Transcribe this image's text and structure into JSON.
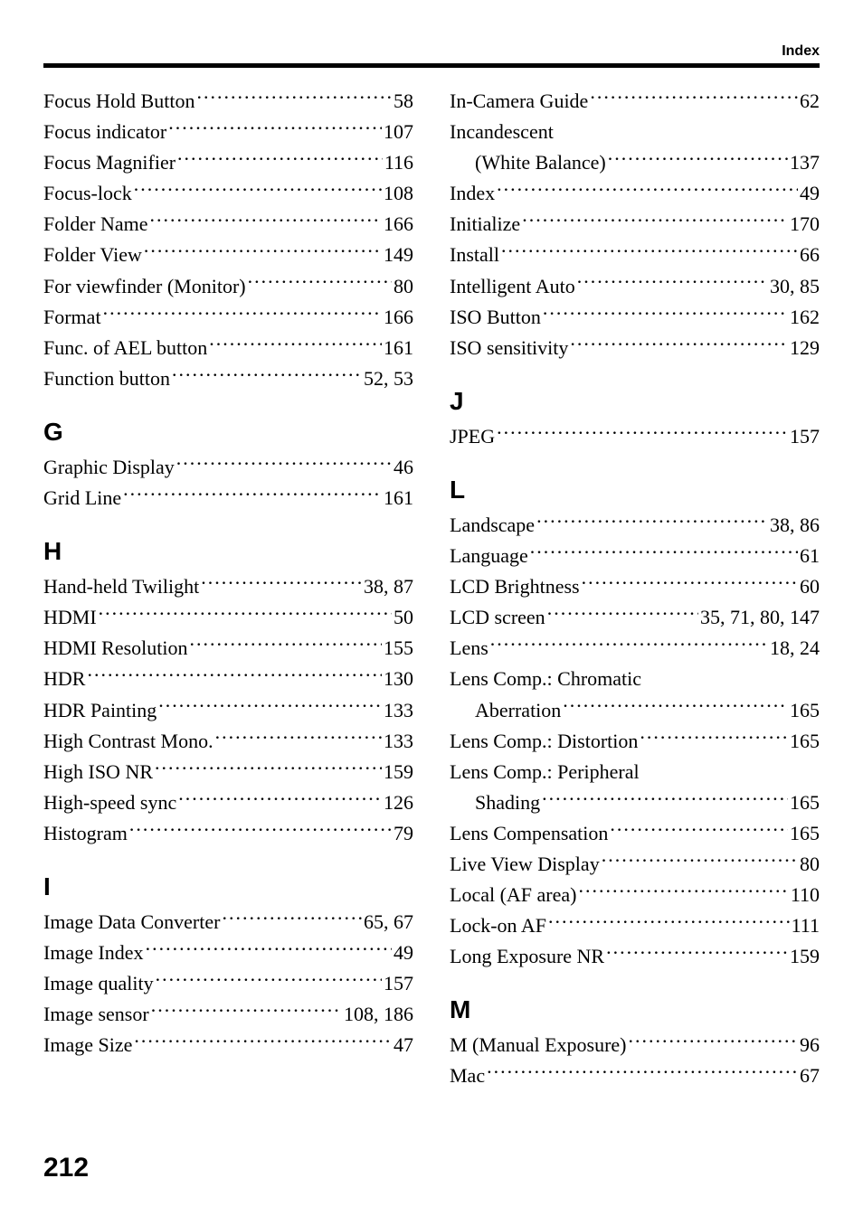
{
  "header": {
    "label": "Index"
  },
  "pageNumber": "212",
  "left": {
    "top": [
      {
        "label": "Focus Hold Button",
        "page": "58"
      },
      {
        "label": "Focus indicator",
        "page": "107"
      },
      {
        "label": "Focus Magnifier",
        "page": "116"
      },
      {
        "label": "Focus-lock",
        "page": "108"
      },
      {
        "label": "Folder Name",
        "page": "166"
      },
      {
        "label": "Folder View",
        "page": "149"
      },
      {
        "label": "For viewfinder (Monitor)",
        "page": "80"
      },
      {
        "label": "Format",
        "page": "166"
      },
      {
        "label": "Func. of AEL button",
        "page": "161"
      },
      {
        "label": "Function button",
        "page": "52, 53"
      }
    ],
    "sections": [
      {
        "letter": "G",
        "entries": [
          {
            "label": "Graphic Display",
            "page": "46"
          },
          {
            "label": "Grid Line",
            "page": "161"
          }
        ]
      },
      {
        "letter": "H",
        "entries": [
          {
            "label": "Hand-held Twilight",
            "page": "38, 87"
          },
          {
            "label": "HDMI",
            "page": "50"
          },
          {
            "label": "HDMI Resolution",
            "page": "155"
          },
          {
            "label": "HDR",
            "page": "130"
          },
          {
            "label": "HDR Painting",
            "page": "133"
          },
          {
            "label": "High Contrast Mono.",
            "page": "133"
          },
          {
            "label": "High ISO NR",
            "page": "159"
          },
          {
            "label": "High-speed sync",
            "page": "126"
          },
          {
            "label": "Histogram",
            "page": "79"
          }
        ]
      },
      {
        "letter": "I",
        "entries": [
          {
            "label": "Image Data Converter",
            "page": "65, 67"
          },
          {
            "label": "Image Index",
            "page": "49"
          },
          {
            "label": "Image quality",
            "page": "157"
          },
          {
            "label": "Image sensor",
            "page": "108, 186"
          },
          {
            "label": "Image Size",
            "page": "47"
          }
        ]
      }
    ]
  },
  "right": {
    "top": [
      {
        "label": "In-Camera Guide",
        "page": "62"
      },
      {
        "label": "Incandescent",
        "page": "",
        "nodots": true
      },
      {
        "label": "(White Balance)",
        "page": "137",
        "continuation": true
      },
      {
        "label": "Index",
        "page": "49"
      },
      {
        "label": "Initialize",
        "page": "170"
      },
      {
        "label": "Install",
        "page": "66"
      },
      {
        "label": "Intelligent Auto",
        "page": "30, 85"
      },
      {
        "label": "ISO Button",
        "page": "162"
      },
      {
        "label": "ISO sensitivity",
        "page": "129"
      }
    ],
    "sections": [
      {
        "letter": "J",
        "entries": [
          {
            "label": "JPEG",
            "page": "157"
          }
        ]
      },
      {
        "letter": "L",
        "entries": [
          {
            "label": "Landscape",
            "page": "38, 86"
          },
          {
            "label": "Language",
            "page": "61"
          },
          {
            "label": "LCD Brightness",
            "page": "60"
          },
          {
            "label": "LCD screen",
            "page": "35, 71, 80, 147"
          },
          {
            "label": "Lens",
            "page": "18, 24"
          },
          {
            "label": "Lens Comp.: Chromatic",
            "page": "",
            "nodots": true
          },
          {
            "label": "Aberration",
            "page": "165",
            "continuation": true
          },
          {
            "label": "Lens Comp.: Distortion",
            "page": "165"
          },
          {
            "label": "Lens Comp.: Peripheral",
            "page": "",
            "nodots": true
          },
          {
            "label": "Shading",
            "page": "165",
            "continuation": true
          },
          {
            "label": "Lens Compensation",
            "page": "165"
          },
          {
            "label": "Live View Display",
            "page": "80"
          },
          {
            "label": "Local (AF area)",
            "page": "110"
          },
          {
            "label": "Lock-on AF",
            "page": "111"
          },
          {
            "label": "Long Exposure NR",
            "page": "159"
          }
        ]
      },
      {
        "letter": "M",
        "entries": [
          {
            "label": "M (Manual Exposure)",
            "page": "96"
          },
          {
            "label": "Mac",
            "page": "67"
          }
        ]
      }
    ]
  }
}
